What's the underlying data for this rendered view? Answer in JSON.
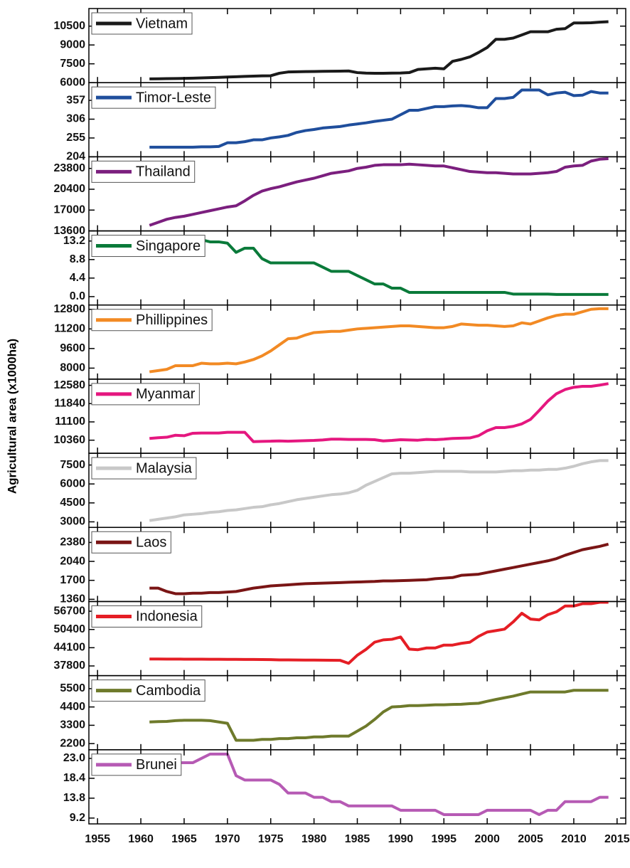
{
  "chart_data": {
    "type": "line",
    "ylabel": "Agricultural area (x1000ha)",
    "x": [
      1961,
      1962,
      1963,
      1964,
      1965,
      1966,
      1967,
      1968,
      1969,
      1970,
      1971,
      1972,
      1973,
      1974,
      1975,
      1976,
      1977,
      1978,
      1979,
      1980,
      1981,
      1982,
      1983,
      1984,
      1985,
      1986,
      1987,
      1988,
      1989,
      1990,
      1991,
      1992,
      1993,
      1994,
      1995,
      1996,
      1997,
      1998,
      1999,
      2000,
      2001,
      2002,
      2003,
      2004,
      2005,
      2006,
      2007,
      2008,
      2009,
      2010,
      2011,
      2012,
      2013,
      2014
    ],
    "xlim": [
      1954,
      2016
    ],
    "xticks": [
      1955,
      1960,
      1965,
      1970,
      1975,
      1980,
      1985,
      1990,
      1995,
      2000,
      2005,
      2010,
      2015
    ],
    "series": [
      {
        "name": "Vietnam",
        "color": "#1a1a1a",
        "ylim": [
          6000,
          11900
        ],
        "yticks": [
          6000,
          7500,
          9000,
          10500
        ],
        "values": [
          6300,
          6310,
          6320,
          6330,
          6340,
          6360,
          6380,
          6400,
          6420,
          6450,
          6470,
          6500,
          6520,
          6540,
          6550,
          6750,
          6850,
          6870,
          6880,
          6890,
          6900,
          6910,
          6920,
          6930,
          6800,
          6760,
          6750,
          6750,
          6760,
          6770,
          6800,
          7050,
          7100,
          7150,
          7100,
          7700,
          7850,
          8050,
          8400,
          8800,
          9450,
          9450,
          9550,
          9800,
          10050,
          10050,
          10050,
          10250,
          10300,
          10750,
          10750,
          10770,
          10820,
          10850
        ]
      },
      {
        "name": "Timor-Leste",
        "color": "#1f4e9c",
        "ylim": [
          204,
          405
        ],
        "yticks": [
          204,
          255,
          306,
          357
        ],
        "values": [
          230,
          230,
          230,
          230,
          230,
          230,
          231,
          231,
          232,
          242,
          242,
          245,
          250,
          250,
          255,
          258,
          262,
          270,
          275,
          278,
          282,
          284,
          286,
          290,
          293,
          296,
          300,
          303,
          306,
          318,
          330,
          330,
          335,
          340,
          340,
          342,
          343,
          341,
          337,
          337,
          362,
          362,
          365,
          385,
          385,
          385,
          372,
          377,
          379,
          370,
          371,
          381,
          377,
          377
        ]
      },
      {
        "name": "Thailand",
        "color": "#7b1f7e",
        "ylim": [
          13600,
          25700
        ],
        "yticks": [
          13600,
          17000,
          20400,
          23800
        ],
        "values": [
          14500,
          15000,
          15500,
          15800,
          16000,
          16300,
          16600,
          16900,
          17200,
          17500,
          17700,
          18500,
          19400,
          20100,
          20500,
          20800,
          21200,
          21600,
          21900,
          22200,
          22600,
          23000,
          23200,
          23400,
          23800,
          24000,
          24300,
          24400,
          24400,
          24400,
          24500,
          24400,
          24300,
          24200,
          24200,
          23900,
          23600,
          23300,
          23200,
          23100,
          23100,
          23000,
          22900,
          22900,
          22900,
          23000,
          23100,
          23300,
          24000,
          24200,
          24300,
          25000,
          25300,
          25400
        ]
      },
      {
        "name": "Singapore",
        "color": "#0a7a3a",
        "ylim": [
          -2,
          15.6
        ],
        "yticks": [
          {
            "value": 0,
            "label": "0.0"
          },
          4.4,
          8.8,
          13.2
        ],
        "values": [
          14,
          14,
          14,
          14,
          14,
          13.5,
          13.5,
          13,
          13,
          12.7,
          10.5,
          11.5,
          11.5,
          9,
          8,
          8,
          8,
          8,
          8,
          8,
          7,
          6,
          6,
          6,
          5,
          4,
          3,
          3,
          2,
          2,
          1,
          1,
          1,
          1,
          1,
          1,
          1,
          1,
          1,
          1,
          1,
          1,
          0.6,
          0.6,
          0.6,
          0.6,
          0.6,
          0.5,
          0.5,
          0.5,
          0.5,
          0.5,
          0.5,
          0.5
        ]
      },
      {
        "name": "Phillippines",
        "color": "#f28a24",
        "ylim": [
          7100,
          13150
        ],
        "yticks": [
          8000,
          9600,
          11200,
          12800
        ],
        "values": [
          7700,
          7800,
          7900,
          8200,
          8200,
          8200,
          8400,
          8350,
          8350,
          8400,
          8350,
          8500,
          8700,
          9000,
          9400,
          9900,
          10400,
          10450,
          10700,
          10900,
          10950,
          11000,
          11000,
          11100,
          11200,
          11250,
          11300,
          11350,
          11400,
          11450,
          11450,
          11400,
          11350,
          11300,
          11300,
          11400,
          11600,
          11550,
          11500,
          11500,
          11450,
          11400,
          11450,
          11700,
          11600,
          11850,
          12100,
          12300,
          12400,
          12400,
          12600,
          12800,
          12850,
          12850
        ]
      },
      {
        "name": "Myanmar",
        "color": "#e5177f",
        "ylim": [
          9830,
          12830
        ],
        "yticks": [
          10360,
          11100,
          11840,
          12580
        ],
        "values": [
          10430,
          10460,
          10480,
          10560,
          10540,
          10640,
          10650,
          10650,
          10650,
          10680,
          10680,
          10680,
          10300,
          10310,
          10320,
          10330,
          10320,
          10330,
          10340,
          10350,
          10370,
          10400,
          10400,
          10390,
          10390,
          10390,
          10380,
          10330,
          10350,
          10380,
          10370,
          10360,
          10390,
          10380,
          10400,
          10430,
          10440,
          10450,
          10540,
          10740,
          10870,
          10870,
          10920,
          11020,
          11200,
          11560,
          11940,
          12240,
          12410,
          12500,
          12540,
          12540,
          12590,
          12650
        ]
      },
      {
        "name": "Malaysia",
        "color": "#c8c8c8",
        "ylim": [
          2560,
          8430
        ],
        "yticks": [
          3000,
          4500,
          6000,
          7500
        ],
        "values": [
          3100,
          3200,
          3300,
          3400,
          3550,
          3600,
          3650,
          3750,
          3800,
          3900,
          3950,
          4050,
          4150,
          4200,
          4350,
          4450,
          4600,
          4750,
          4850,
          4950,
          5050,
          5150,
          5200,
          5300,
          5500,
          5900,
          6200,
          6500,
          6800,
          6850,
          6850,
          6900,
          6950,
          7000,
          7000,
          7000,
          7000,
          6950,
          6950,
          6950,
          6950,
          7000,
          7050,
          7050,
          7100,
          7100,
          7150,
          7150,
          7250,
          7400,
          7600,
          7750,
          7850,
          7850
        ]
      },
      {
        "name": "Laos",
        "color": "#7a1515",
        "ylim": [
          1320,
          2650
        ],
        "yticks": [
          1360,
          1700,
          2040,
          2380
        ],
        "values": [
          1560,
          1560,
          1500,
          1460,
          1460,
          1470,
          1470,
          1480,
          1480,
          1490,
          1500,
          1530,
          1560,
          1580,
          1600,
          1610,
          1620,
          1630,
          1640,
          1645,
          1650,
          1655,
          1660,
          1665,
          1670,
          1675,
          1680,
          1690,
          1690,
          1695,
          1700,
          1705,
          1710,
          1730,
          1740,
          1750,
          1790,
          1800,
          1810,
          1840,
          1870,
          1900,
          1930,
          1960,
          1990,
          2020,
          2050,
          2090,
          2150,
          2200,
          2250,
          2280,
          2310,
          2350
        ]
      },
      {
        "name": "Indonesia",
        "color": "#e51e25",
        "ylim": [
          34450,
          60050
        ],
        "yticks": [
          37800,
          44100,
          50400,
          56700
        ],
        "values": [
          40200,
          40190,
          40180,
          40160,
          40150,
          40140,
          40120,
          40100,
          40090,
          40080,
          40060,
          40050,
          40030,
          40000,
          39980,
          39900,
          39880,
          39860,
          39840,
          39820,
          39800,
          39780,
          39750,
          38700,
          41500,
          43500,
          46000,
          46800,
          47000,
          47800,
          43600,
          43400,
          44000,
          44000,
          45000,
          45000,
          45600,
          46000,
          48000,
          49500,
          50000,
          50500,
          53000,
          56000,
          54000,
          53700,
          55500,
          56500,
          58500,
          58500,
          59300,
          59300,
          59800,
          59800
        ]
      },
      {
        "name": "Cambodia",
        "color": "#6e7a2b",
        "ylim": [
          1830,
          6280
        ],
        "yticks": [
          2200,
          3300,
          4400,
          5500
        ],
        "values": [
          3500,
          3520,
          3530,
          3580,
          3600,
          3600,
          3600,
          3580,
          3500,
          3420,
          2400,
          2400,
          2400,
          2450,
          2450,
          2500,
          2500,
          2550,
          2550,
          2600,
          2600,
          2650,
          2650,
          2650,
          2950,
          3250,
          3650,
          4100,
          4400,
          4430,
          4480,
          4480,
          4500,
          4530,
          4530,
          4550,
          4560,
          4600,
          4620,
          4740,
          4850,
          4950,
          5050,
          5180,
          5300,
          5300,
          5300,
          5300,
          5300,
          5400,
          5400,
          5400,
          5400,
          5400
        ]
      },
      {
        "name": "Brunei",
        "color": "#b65ab4",
        "ylim": [
          7.85,
          25
        ],
        "yticks": [
          9.2,
          13.8,
          18.4,
          {
            "value": 23,
            "label": "23.0"
          }
        ],
        "values": [
          22,
          22,
          22,
          22,
          22,
          22,
          23,
          24,
          24,
          24,
          19,
          18,
          18,
          18,
          18,
          17,
          15,
          15,
          15,
          14,
          14,
          13,
          13,
          12,
          12,
          12,
          12,
          12,
          12,
          11,
          11,
          11,
          11,
          11,
          10,
          10,
          10,
          10,
          10,
          11,
          11,
          11,
          11,
          11,
          11,
          10,
          11,
          11,
          13,
          13,
          13,
          13,
          14,
          14
        ]
      }
    ]
  }
}
